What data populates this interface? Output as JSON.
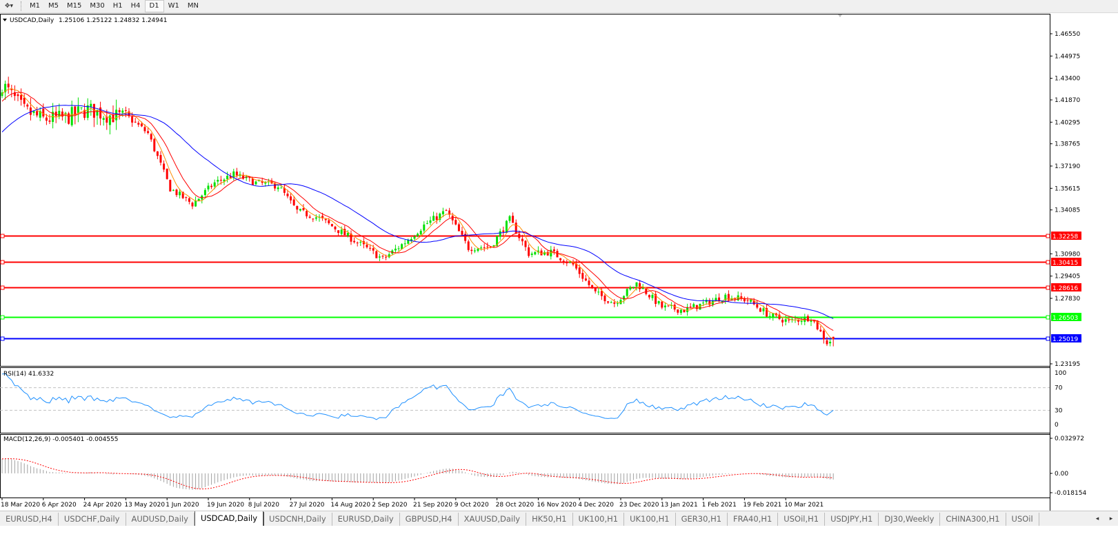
{
  "toolbar": {
    "timeframes": [
      "M1",
      "M5",
      "M15",
      "M30",
      "H1",
      "H4",
      "D1",
      "W1",
      "MN"
    ],
    "active_timeframe": "D1"
  },
  "chart_header": {
    "symbol": "USDCAD,Daily",
    "ohlc": "1.25106 1.25122 1.24832 1.24941"
  },
  "indicators": {
    "rsi_label": "RSI(14) 41.6332",
    "macd_label": "MACD(12,26,9) -0.005401 -0.004555"
  },
  "colors": {
    "bull_candle": "#00e000",
    "bear_candle": "#ff0000",
    "ma_fast": "#ff8c00",
    "ma_mid": "#ff0000",
    "ma_slow": "#0000ff",
    "rsi_line": "#1e90ff",
    "macd_signal": "#ff0000",
    "macd_hist": "#a0a0a0"
  },
  "chart_data": {
    "type": "candlestick",
    "symbol": "USDCAD",
    "timeframe": "Daily",
    "price_axis_ticks": [
      "1.46550",
      "1.44975",
      "1.43400",
      "1.41870",
      "1.40295",
      "1.38765",
      "1.37190",
      "1.35615",
      "1.34085",
      "1.30980",
      "1.29405",
      "1.27830",
      "1.23195"
    ],
    "ylim": [
      1.23195,
      1.4655
    ],
    "date_ticks": [
      "18 Mar 2020",
      "6 Apr 2020",
      "24 Apr 2020",
      "13 May 2020",
      "1 Jun 2020",
      "19 Jun 2020",
      "8 Jul 2020",
      "27 Jul 2020",
      "14 Aug 2020",
      "2 Sep 2020",
      "21 Sep 2020",
      "9 Oct 2020",
      "28 Oct 2020",
      "16 Nov 2020",
      "4 Dec 2020",
      "23 Dec 2020",
      "13 Jan 2021",
      "1 Feb 2021",
      "19 Feb 2021",
      "10 Mar 2021"
    ],
    "approx_closes": [
      [
        "2020-03-18",
        1.43
      ],
      [
        "2020-03-27",
        1.411
      ],
      [
        "2020-04-06",
        1.405
      ],
      [
        "2020-04-15",
        1.406
      ],
      [
        "2020-04-24",
        1.412
      ],
      [
        "2020-05-04",
        1.408
      ],
      [
        "2020-05-13",
        1.406
      ],
      [
        "2020-05-21",
        1.395
      ],
      [
        "2020-06-01",
        1.356
      ],
      [
        "2020-06-10",
        1.345
      ],
      [
        "2020-06-19",
        1.36
      ],
      [
        "2020-06-29",
        1.366
      ],
      [
        "2020-07-08",
        1.36
      ],
      [
        "2020-07-17",
        1.358
      ],
      [
        "2020-07-27",
        1.34
      ],
      [
        "2020-08-05",
        1.335
      ],
      [
        "2020-08-14",
        1.325
      ],
      [
        "2020-08-25",
        1.315
      ],
      [
        "2020-09-02",
        1.306
      ],
      [
        "2020-09-11",
        1.318
      ],
      [
        "2020-09-21",
        1.33
      ],
      [
        "2020-09-30",
        1.34
      ],
      [
        "2020-10-09",
        1.314
      ],
      [
        "2020-10-20",
        1.315
      ],
      [
        "2020-10-28",
        1.334
      ],
      [
        "2020-11-05",
        1.31
      ],
      [
        "2020-11-16",
        1.311
      ],
      [
        "2020-11-25",
        1.302
      ],
      [
        "2020-12-04",
        1.282
      ],
      [
        "2020-12-14",
        1.275
      ],
      [
        "2020-12-23",
        1.289
      ],
      [
        "2021-01-04",
        1.272
      ],
      [
        "2021-01-13",
        1.27
      ],
      [
        "2021-01-22",
        1.275
      ],
      [
        "2021-02-01",
        1.28
      ],
      [
        "2021-02-10",
        1.277
      ],
      [
        "2021-02-19",
        1.266
      ],
      [
        "2021-03-01",
        1.262
      ],
      [
        "2021-03-10",
        1.265
      ],
      [
        "2021-03-17",
        1.247
      ],
      [
        "2021-03-19",
        1.24941
      ]
    ],
    "last_bar": {
      "open": 1.25106,
      "high": 1.25122,
      "low": 1.24832,
      "close": 1.24941
    },
    "horizontal_lines": [
      {
        "price": "1.32258",
        "color": "#ff0000"
      },
      {
        "price": "1.30415",
        "color": "#ff0000"
      },
      {
        "price": "1.28616",
        "color": "#ff0000"
      },
      {
        "price": "1.26503",
        "color": "#00ff00"
      },
      {
        "price": "1.25019",
        "color": "#0000ff"
      }
    ],
    "rsi": {
      "period": 14,
      "value": 41.6332,
      "ticks": [
        "100",
        "70",
        "30",
        "0"
      ],
      "levels": [
        70,
        30
      ]
    },
    "macd": {
      "fast": 12,
      "slow": 26,
      "signal": 9,
      "main": -0.005401,
      "signal_value": -0.004555,
      "ticks": [
        "0.032972",
        "0.00",
        "-0.018154"
      ],
      "ylim": [
        -0.018154,
        0.032972
      ]
    }
  },
  "tabs": [
    "EURUSD,H4",
    "USDCHF,Daily",
    "AUDUSD,Daily",
    "USDCAD,Daily",
    "USDCNH,Daily",
    "EURUSD,Daily",
    "GBPUSD,H4",
    "XAUUSD,Daily",
    "HK50,H1",
    "UK100,H1",
    "UK100,H1",
    "GER30,H1",
    "FRA40,H1",
    "USOil,H1",
    "USDJPY,H1",
    "DJ30,Weekly",
    "CHINA300,H1",
    "USOil"
  ],
  "active_tab": "USDCAD,Daily"
}
